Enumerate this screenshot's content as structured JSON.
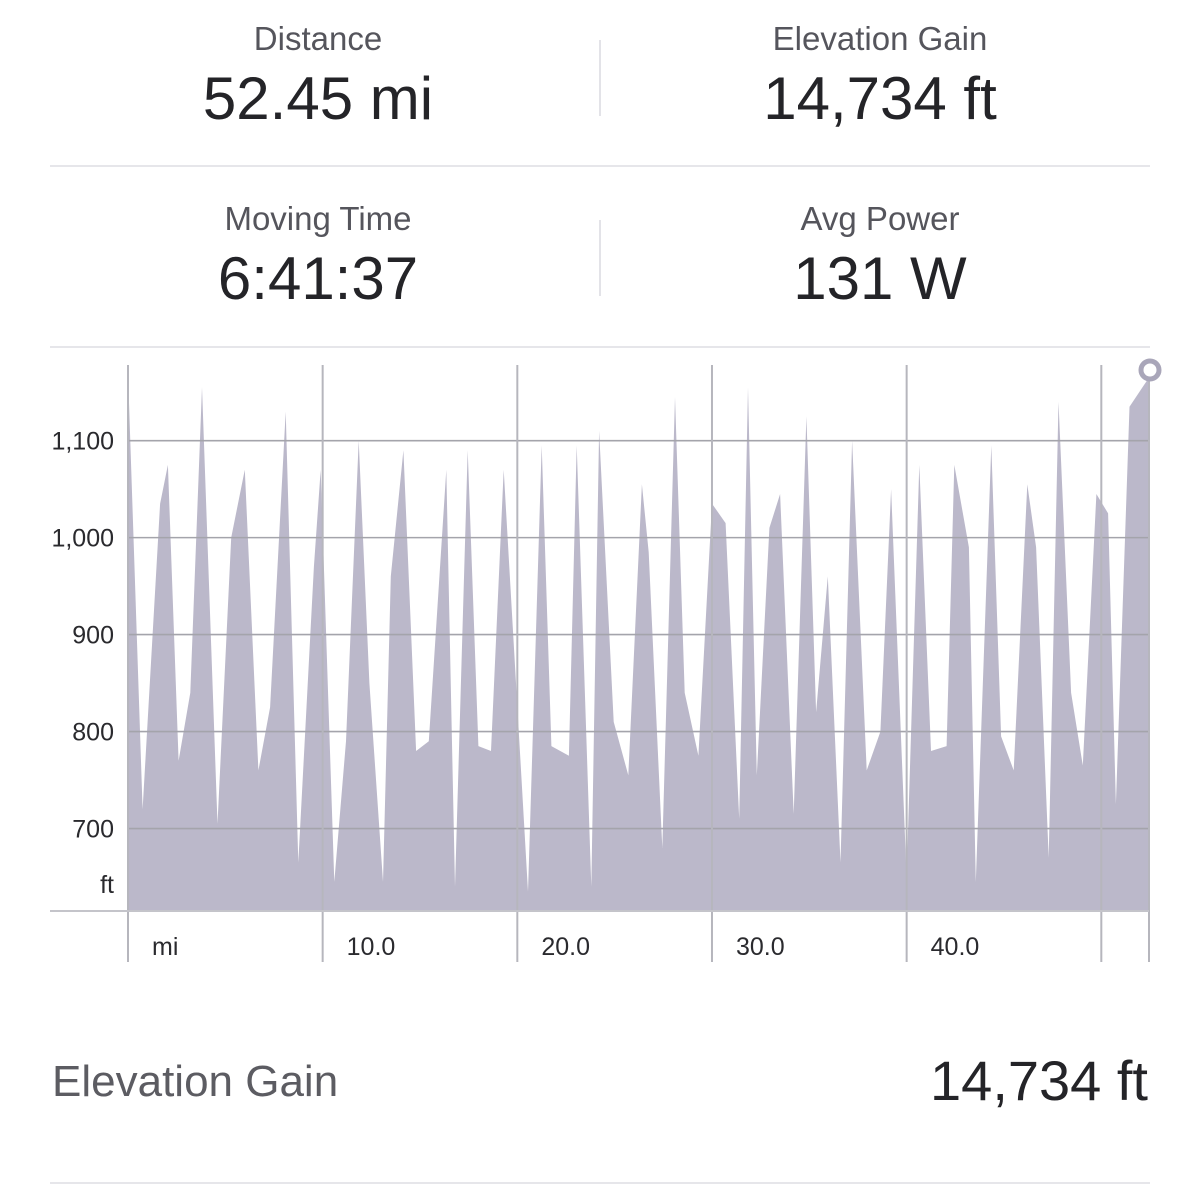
{
  "stats": {
    "distance": {
      "label": "Distance",
      "value": "52.45 mi"
    },
    "elevation_gain": {
      "label": "Elevation Gain",
      "value": "14,734 ft"
    },
    "moving_time": {
      "label": "Moving Time",
      "value": "6:41:37"
    },
    "avg_power": {
      "label": "Avg Power",
      "value": "131 W"
    }
  },
  "summary": {
    "label": "Elevation Gain",
    "value": "14,734 ft"
  },
  "colors": {
    "area_fill": "#bbb8ca",
    "grid": "#a9a9b0",
    "divider": "#e6e6ea",
    "text": "#242428"
  },
  "chart_data": {
    "type": "area",
    "xlabel": "mi",
    "ylabel": "ft",
    "x_ticks": [
      "10.0",
      "20.0",
      "30.0",
      "40.0"
    ],
    "y_ticks": [
      "700",
      "800",
      "900",
      "1,000",
      "1,100"
    ],
    "xlim": [
      0,
      52.45
    ],
    "ylim": [
      605,
      1170
    ],
    "grid": true,
    "x": [
      0,
      0.75,
      1.65,
      2.05,
      2.6,
      3.2,
      3.8,
      4.6,
      5.3,
      6.0,
      6.7,
      7.3,
      8.1,
      8.75,
      9.55,
      9.9,
      10.6,
      11.2,
      11.85,
      12.4,
      13.1,
      13.5,
      14.15,
      14.8,
      15.45,
      16.35,
      16.8,
      17.45,
      18.0,
      18.65,
      19.3,
      20.55,
      21.25,
      21.75,
      22.65,
      23.05,
      23.8,
      24.2,
      24.95,
      25.7,
      26.4,
      26.75,
      27.45,
      28.1,
      28.6,
      29.3,
      30.0,
      30.7,
      31.4,
      31.85,
      32.3,
      32.95,
      33.5,
      34.2,
      34.85,
      35.35,
      35.95,
      36.6,
      37.2,
      37.95,
      38.65,
      39.2,
      40.0,
      40.65,
      41.25,
      42.05,
      42.45,
      43.2,
      43.55,
      44.35,
      44.85,
      45.5,
      46.2,
      46.65,
      47.3,
      47.8,
      48.45,
      49.05,
      49.75,
      50.35,
      50.75,
      51.45,
      52.45
    ],
    "y": [
      1170,
      720,
      1035,
      1075,
      770,
      840,
      1155,
      705,
      1000,
      1070,
      760,
      825,
      1130,
      665,
      970,
      1070,
      645,
      790,
      1100,
      850,
      645,
      960,
      1090,
      780,
      790,
      1070,
      640,
      1090,
      785,
      780,
      1070,
      635,
      1095,
      785,
      775,
      1095,
      640,
      1110,
      810,
      755,
      1055,
      985,
      680,
      1145,
      840,
      775,
      1035,
      1015,
      710,
      1155,
      755,
      1010,
      1045,
      715,
      1125,
      820,
      960,
      665,
      1100,
      760,
      800,
      1050,
      650,
      1075,
      780,
      785,
      1075,
      990,
      645,
      1095,
      795,
      760,
      1055,
      990,
      670,
      1140,
      840,
      765,
      1045,
      1025,
      725,
      1135,
      1165
    ]
  }
}
